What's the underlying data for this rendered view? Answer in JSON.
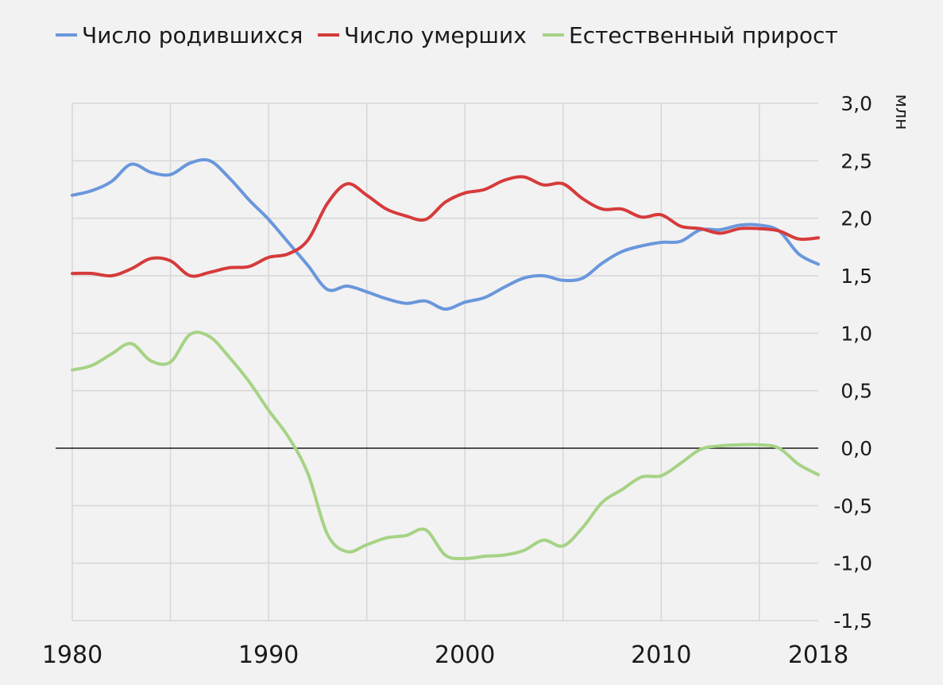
{
  "chart_data": {
    "type": "line",
    "ylabel": "млн",
    "xlim": [
      1980,
      2018
    ],
    "ylim": [
      -1.5,
      3.0
    ],
    "x_ticks": [
      {
        "value": 1980,
        "label": "1980"
      },
      {
        "value": 1990,
        "label": "1990"
      },
      {
        "value": 2000,
        "label": "2000"
      },
      {
        "value": 2010,
        "label": "2010"
      },
      {
        "value": 2018,
        "label": "2018"
      }
    ],
    "y_ticks": [
      {
        "value": 3.0,
        "label": "3,0"
      },
      {
        "value": 2.5,
        "label": "2,5"
      },
      {
        "value": 2.0,
        "label": "2,0"
      },
      {
        "value": 1.5,
        "label": "1,5"
      },
      {
        "value": 1.0,
        "label": "1,0"
      },
      {
        "value": 0.5,
        "label": "0,5"
      },
      {
        "value": 0.0,
        "label": "0,0"
      },
      {
        "value": -0.5,
        "label": "-0,5"
      },
      {
        "value": -1.0,
        "label": "-1,0"
      },
      {
        "value": -1.5,
        "label": "-1,5"
      }
    ],
    "grid": true,
    "legend_position": "top",
    "x": [
      1980,
      1981,
      1982,
      1983,
      1984,
      1985,
      1986,
      1987,
      1988,
      1989,
      1990,
      1991,
      1992,
      1993,
      1994,
      1995,
      1996,
      1997,
      1998,
      1999,
      2000,
      2001,
      2002,
      2003,
      2004,
      2005,
      2006,
      2007,
      2008,
      2009,
      2010,
      2011,
      2012,
      2013,
      2014,
      2015,
      2016,
      2017,
      2018
    ],
    "series": [
      {
        "name": "Число родившихся",
        "color": "#6a97dc",
        "values": [
          2.2,
          2.24,
          2.32,
          2.47,
          2.4,
          2.38,
          2.48,
          2.5,
          2.35,
          2.16,
          1.99,
          1.79,
          1.59,
          1.38,
          1.41,
          1.36,
          1.3,
          1.26,
          1.28,
          1.21,
          1.27,
          1.31,
          1.4,
          1.48,
          1.5,
          1.46,
          1.48,
          1.61,
          1.71,
          1.76,
          1.79,
          1.8,
          1.9,
          1.9,
          1.94,
          1.94,
          1.89,
          1.69,
          1.6
        ]
      },
      {
        "name": "Число умерших",
        "color": "#d63b3b",
        "values": [
          1.52,
          1.52,
          1.5,
          1.56,
          1.65,
          1.63,
          1.5,
          1.53,
          1.57,
          1.58,
          1.66,
          1.69,
          1.81,
          2.13,
          2.3,
          2.2,
          2.08,
          2.02,
          1.99,
          2.14,
          2.22,
          2.25,
          2.33,
          2.36,
          2.29,
          2.3,
          2.17,
          2.08,
          2.08,
          2.01,
          2.03,
          1.93,
          1.91,
          1.87,
          1.91,
          1.91,
          1.89,
          1.82,
          1.83
        ]
      },
      {
        "name": "Естественный прирост",
        "color": "#a6d385",
        "values": [
          0.68,
          0.72,
          0.82,
          0.91,
          0.76,
          0.75,
          0.99,
          0.97,
          0.79,
          0.58,
          0.33,
          0.1,
          -0.22,
          -0.75,
          -0.9,
          -0.84,
          -0.78,
          -0.76,
          -0.71,
          -0.93,
          -0.96,
          -0.94,
          -0.93,
          -0.89,
          -0.8,
          -0.85,
          -0.69,
          -0.47,
          -0.36,
          -0.25,
          -0.24,
          -0.13,
          -0.01,
          0.02,
          0.03,
          0.03,
          0.0,
          -0.14,
          -0.23
        ]
      }
    ]
  }
}
